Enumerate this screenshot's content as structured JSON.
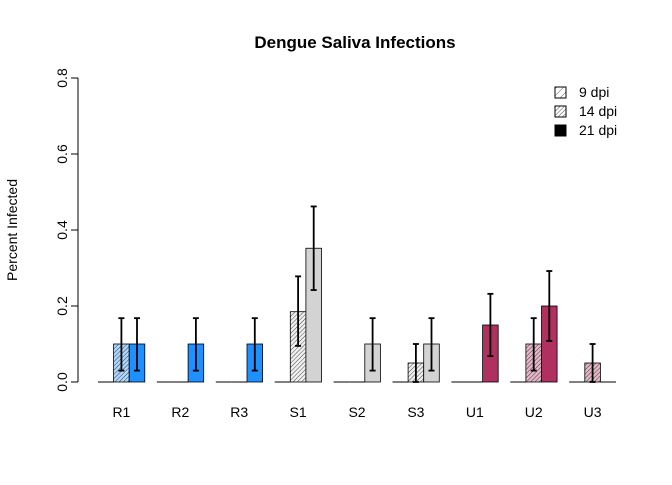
{
  "chart_data": {
    "type": "bar",
    "title": "Dengue Saliva Infections",
    "xlabel": "",
    "ylabel": "Percent Infected",
    "ylim": [
      0,
      0.8
    ],
    "yticks": [
      "0.0",
      "0.2",
      "0.4",
      "0.6",
      "0.8"
    ],
    "grid": false,
    "legend_position": "top-right",
    "categories": [
      "R1",
      "R2",
      "R3",
      "S1",
      "S2",
      "S3",
      "U1",
      "U2",
      "U3"
    ],
    "group_colors": {
      "R1": "#1e90ff",
      "R2": "#1e90ff",
      "R3": "#1e90ff",
      "S1": "#d3d3d3",
      "S2": "#d3d3d3",
      "S3": "#d3d3d3",
      "U1": "#b03060",
      "U2": "#b03060",
      "U3": "#b03060"
    },
    "series": [
      {
        "name": "9 dpi",
        "pattern": "sparse-hatch",
        "values": [
          0.0,
          0.0,
          0.0,
          0.0,
          0.0,
          0.0,
          0.0,
          0.0,
          0.0
        ],
        "error_low": [
          null,
          null,
          null,
          null,
          null,
          null,
          null,
          null,
          null
        ],
        "error_high": [
          null,
          null,
          null,
          null,
          null,
          null,
          null,
          null,
          null
        ]
      },
      {
        "name": "14 dpi",
        "pattern": "dense-hatch",
        "values": [
          0.1,
          0.0,
          0.0,
          0.185,
          0.0,
          0.05,
          0.0,
          0.1,
          0.05
        ],
        "error_low": [
          0.03,
          null,
          null,
          0.095,
          null,
          0.0,
          null,
          0.03,
          0.0
        ],
        "error_high": [
          0.168,
          null,
          null,
          0.278,
          null,
          0.1,
          null,
          0.168,
          0.1
        ]
      },
      {
        "name": "21 dpi",
        "pattern": "solid",
        "values": [
          0.1,
          0.1,
          0.1,
          0.352,
          0.1,
          0.1,
          0.15,
          0.2,
          0.0
        ],
        "error_low": [
          0.03,
          0.03,
          0.03,
          0.242,
          0.03,
          0.03,
          0.068,
          0.108,
          null
        ],
        "error_high": [
          0.168,
          0.168,
          0.168,
          0.462,
          0.168,
          0.168,
          0.232,
          0.292,
          null
        ]
      }
    ]
  }
}
